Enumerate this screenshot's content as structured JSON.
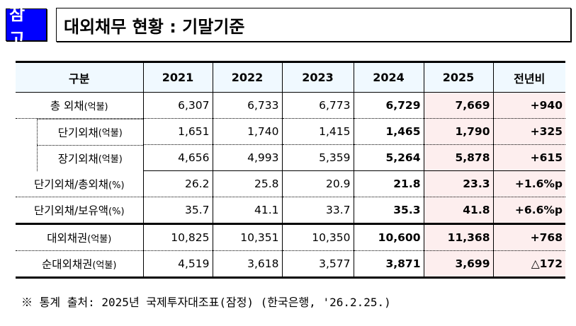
{
  "header": {
    "badge": "참 고",
    "title": "대외채무 현황 : 기말기준"
  },
  "table": {
    "columns": [
      "구분",
      "2021",
      "2022",
      "2023",
      "2024",
      "2025",
      "전년비"
    ],
    "rows": [
      {
        "label": "총 외채",
        "unit": "(억불)",
        "values": [
          "6,307",
          "6,733",
          "6,773",
          "6,729",
          "7,669"
        ],
        "change": "+940"
      },
      {
        "label": "단기외채",
        "unit": "(억불)",
        "values": [
          "1,651",
          "1,740",
          "1,415",
          "1,465",
          "1,790"
        ],
        "change": "+325"
      },
      {
        "label": "장기외채",
        "unit": "(억불)",
        "values": [
          "4,656",
          "4,993",
          "5,359",
          "5,264",
          "5,878"
        ],
        "change": "+615"
      },
      {
        "label": "단기외채/총외채",
        "unit": "(%)",
        "values": [
          "26.2",
          "25.8",
          "20.9",
          "21.8",
          "23.3"
        ],
        "change": "+1.6%p"
      },
      {
        "label": "단기외채/보유액",
        "unit": "(%)",
        "values": [
          "35.7",
          "41.1",
          "33.7",
          "35.3",
          "41.8"
        ],
        "change": "+6.6%p"
      },
      {
        "label": "대외채권",
        "unit": "(억불)",
        "values": [
          "10,825",
          "10,351",
          "10,350",
          "10,600",
          "11,368"
        ],
        "change": "+768"
      },
      {
        "label": "순대외채권",
        "unit": "(억불)",
        "values": [
          "4,519",
          "3,618",
          "3,577",
          "3,871",
          "3,699"
        ],
        "change": "△172"
      }
    ]
  },
  "note": "※ 통계 출처: 2025년 국제투자대조표(잠정) (한국은행, '26.2.25.)",
  "colors": {
    "badge": "#0000ff",
    "header_bg": "#f0f9ff",
    "highlight_bg": "#fdeeee"
  }
}
